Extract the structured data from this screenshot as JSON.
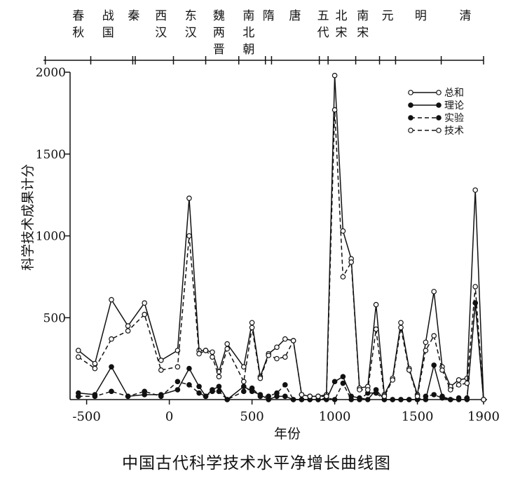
{
  "caption": "中国古代科学技术水平净增长曲线图",
  "chart_data": {
    "type": "line",
    "title": "",
    "xlabel": "年份",
    "ylabel": "科学技术成果计分",
    "xlim": [
      -600,
      1900
    ],
    "ylim": [
      0,
      2000
    ],
    "x_ticks": [
      -500,
      0,
      500,
      1000,
      1500,
      1900
    ],
    "y_ticks": [
      500,
      1000,
      1500,
      2000
    ],
    "grid": false,
    "legend_position": "top-right",
    "dynasties": [
      {
        "name": "春秋",
        "center": -550
      },
      {
        "name": "战国",
        "center": -370
      },
      {
        "name": "秦",
        "center": -215
      },
      {
        "name": "西汉",
        "center": -50
      },
      {
        "name": "东汉",
        "center": 130
      },
      {
        "name": "魏两晋",
        "center": 300
      },
      {
        "name": "南北朝",
        "center": 480
      },
      {
        "name": "隋",
        "center": 600
      },
      {
        "name": "唐",
        "center": 760
      },
      {
        "name": "五代",
        "center": 930
      },
      {
        "name": "北宋",
        "center": 1040
      },
      {
        "name": "南宋",
        "center": 1170
      },
      {
        "name": "元",
        "center": 1320
      },
      {
        "name": "明",
        "center": 1520
      },
      {
        "name": "清",
        "center": 1790
      }
    ],
    "dynasty_boundaries": [
      -475,
      -221,
      -206,
      25,
      220,
      420,
      581,
      618,
      907,
      960,
      1127,
      1271,
      1368,
      1644
    ],
    "series": [
      {
        "name": "总和",
        "line_style": "solid",
        "marker": "open",
        "x": [
          -550,
          -450,
          -350,
          -250,
          -150,
          -50,
          50,
          120,
          180,
          220,
          260,
          300,
          350,
          450,
          500,
          550,
          600,
          650,
          700,
          750,
          800,
          850,
          900,
          950,
          1000,
          1050,
          1100,
          1150,
          1200,
          1250,
          1300,
          1350,
          1400,
          1450,
          1500,
          1550,
          1600,
          1650,
          1700,
          1750,
          1800,
          1850,
          1900
        ],
        "y": [
          300,
          220,
          610,
          450,
          590,
          240,
          300,
          1230,
          300,
          300,
          290,
          170,
          340,
          200,
          470,
          140,
          280,
          320,
          370,
          360,
          30,
          20,
          20,
          30,
          1980,
          1030,
          860,
          70,
          80,
          580,
          30,
          130,
          470,
          190,
          30,
          350,
          660,
          200,
          80,
          120,
          130,
          1280,
          0
        ]
      },
      {
        "name": "理论",
        "line_style": "solid",
        "marker": "filled",
        "x": [
          -550,
          -450,
          -350,
          -250,
          -150,
          -50,
          50,
          120,
          180,
          220,
          260,
          300,
          350,
          450,
          500,
          550,
          600,
          650,
          700,
          750,
          800,
          850,
          900,
          950,
          1000,
          1050,
          1100,
          1150,
          1200,
          1250,
          1300,
          1350,
          1400,
          1450,
          1500,
          1550,
          1600,
          1650,
          1700,
          1750,
          1800,
          1850,
          1900
        ],
        "y": [
          40,
          30,
          200,
          20,
          30,
          30,
          60,
          190,
          80,
          20,
          60,
          80,
          0,
          80,
          50,
          30,
          0,
          20,
          20,
          0,
          0,
          0,
          0,
          0,
          110,
          140,
          20,
          10,
          0,
          60,
          0,
          0,
          0,
          0,
          0,
          0,
          210,
          20,
          0,
          0,
          0,
          590,
          0
        ]
      },
      {
        "name": "实验",
        "line_style": "dashed",
        "marker": "filled",
        "x": [
          -550,
          -450,
          -350,
          -250,
          -150,
          -50,
          50,
          120,
          180,
          220,
          260,
          300,
          350,
          450,
          500,
          550,
          600,
          650,
          700,
          750,
          800,
          850,
          900,
          950,
          1000,
          1050,
          1100,
          1150,
          1200,
          1250,
          1300,
          1350,
          1400,
          1450,
          1500,
          1550,
          1600,
          1650,
          1700,
          1750,
          1800,
          1850,
          1900
        ],
        "y": [
          20,
          20,
          50,
          20,
          50,
          20,
          110,
          90,
          40,
          20,
          50,
          50,
          0,
          50,
          70,
          20,
          20,
          40,
          90,
          0,
          0,
          0,
          0,
          10,
          0,
          100,
          0,
          0,
          40,
          40,
          0,
          0,
          0,
          0,
          0,
          20,
          30,
          10,
          0,
          10,
          10,
          590,
          0
        ]
      },
      {
        "name": "技术",
        "line_style": "dashed",
        "marker": "open",
        "x": [
          -550,
          -450,
          -350,
          -250,
          -150,
          -50,
          50,
          120,
          180,
          220,
          260,
          300,
          350,
          450,
          500,
          550,
          600,
          650,
          700,
          750,
          800,
          850,
          900,
          950,
          1000,
          1050,
          1100,
          1150,
          1200,
          1250,
          1300,
          1350,
          1400,
          1450,
          1500,
          1550,
          1600,
          1650,
          1700,
          1750,
          1800,
          1850,
          1900
        ],
        "y": [
          260,
          190,
          370,
          420,
          520,
          180,
          200,
          1000,
          280,
          300,
          260,
          140,
          310,
          110,
          440,
          130,
          270,
          250,
          260,
          360,
          30,
          20,
          20,
          20,
          1770,
          750,
          840,
          60,
          60,
          430,
          20,
          120,
          440,
          180,
          20,
          300,
          390,
          180,
          60,
          90,
          100,
          690,
          0
        ]
      }
    ]
  }
}
